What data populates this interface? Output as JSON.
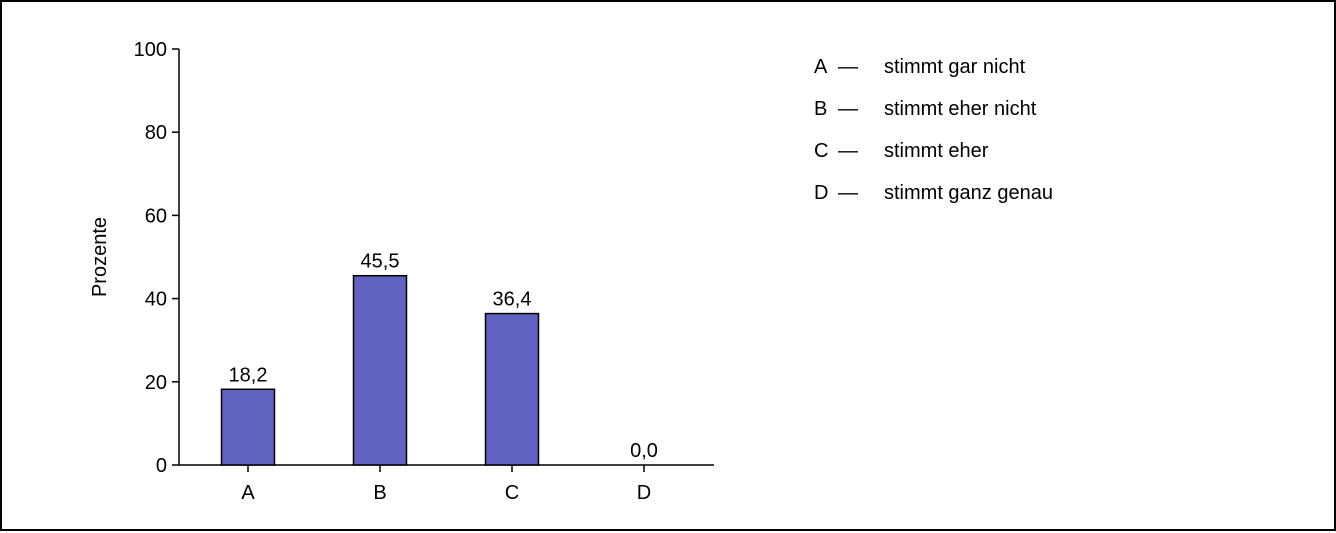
{
  "chart_data": {
    "type": "bar",
    "categories": [
      "A",
      "B",
      "C",
      "D"
    ],
    "values": [
      18.2,
      45.5,
      36.4,
      0.0
    ],
    "value_labels": [
      "18,2",
      "45,5",
      "36,4",
      "0,0"
    ],
    "ylabel": "Prozente",
    "xlabel": "",
    "ylim": [
      0,
      100
    ],
    "yticks": [
      0,
      20,
      40,
      60,
      80,
      100
    ],
    "ytick_labels": [
      "0",
      "20",
      "40",
      "60",
      "80",
      "100"
    ],
    "bar_color": "#6161c1",
    "grid": false,
    "legend_position": "top-right",
    "legend": [
      {
        "key": "A",
        "sep": "—",
        "text": "stimmt gar nicht"
      },
      {
        "key": "B",
        "sep": "—",
        "text": "stimmt eher nicht"
      },
      {
        "key": "C",
        "sep": "—",
        "text": "stimmt eher"
      },
      {
        "key": "D",
        "sep": "—",
        "text": "stimmt ganz genau"
      }
    ]
  }
}
